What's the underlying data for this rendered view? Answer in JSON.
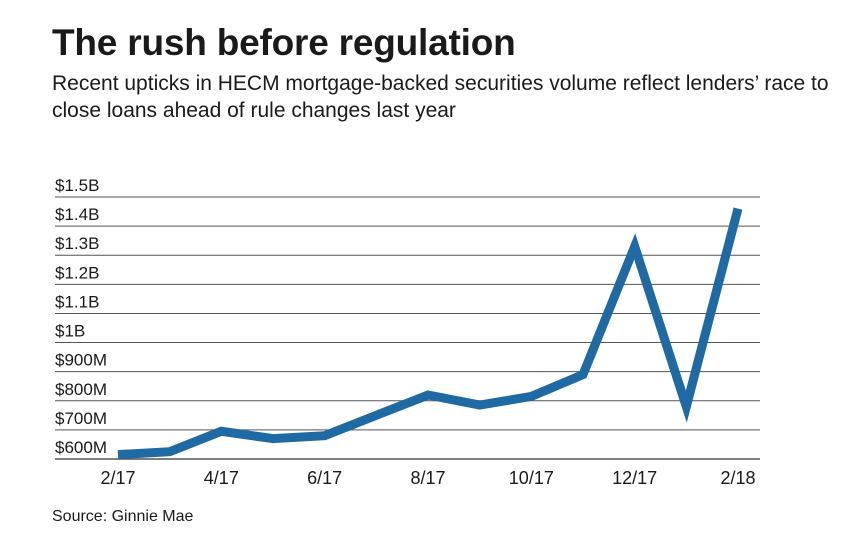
{
  "header": {
    "title": "The rush before regulation",
    "subtitle": "Recent upticks in HECM mortgage-backed securities volume reflect lenders’ race to close loans ahead of rule changes last year"
  },
  "footer": {
    "source": "Source: Ginnie Mae"
  },
  "colors": {
    "line": "#1f6aa2",
    "grid": "#555555",
    "text": "#1a1a1a"
  },
  "chart_data": {
    "type": "line",
    "title": "The rush before regulation",
    "subtitle": "Recent upticks in HECM mortgage-backed securities volume reflect lenders’ race to close loans ahead of rule changes last year",
    "xlabel": "",
    "ylabel": "",
    "x": [
      "2/17",
      "3/17",
      "4/17",
      "5/17",
      "6/17",
      "7/17",
      "8/17",
      "9/17",
      "10/17",
      "11/17",
      "12/17",
      "1/18",
      "2/18"
    ],
    "x_tick_labels": [
      "2/17",
      "4/17",
      "6/17",
      "8/17",
      "10/17",
      "12/17",
      "2/18"
    ],
    "series": [
      {
        "values": [
          615,
          625,
          695,
          670,
          680,
          750,
          820,
          785,
          815,
          890,
          1330,
          780,
          1460
        ]
      }
    ],
    "y_ticks": [
      {
        "value": 600,
        "label": "$600M"
      },
      {
        "value": 700,
        "label": "$700M"
      },
      {
        "value": 800,
        "label": "$800M"
      },
      {
        "value": 900,
        "label": "$900M"
      },
      {
        "value": 1000,
        "label": "$1B"
      },
      {
        "value": 1100,
        "label": "$1.1B"
      },
      {
        "value": 1200,
        "label": "$1.2B"
      },
      {
        "value": 1300,
        "label": "$1.3B"
      },
      {
        "value": 1400,
        "label": "$1.4B"
      },
      {
        "value": 1500,
        "label": "$1.5B"
      }
    ],
    "ylim": [
      600,
      1500
    ],
    "units": "USD millions",
    "grid": true,
    "legend": "none"
  }
}
